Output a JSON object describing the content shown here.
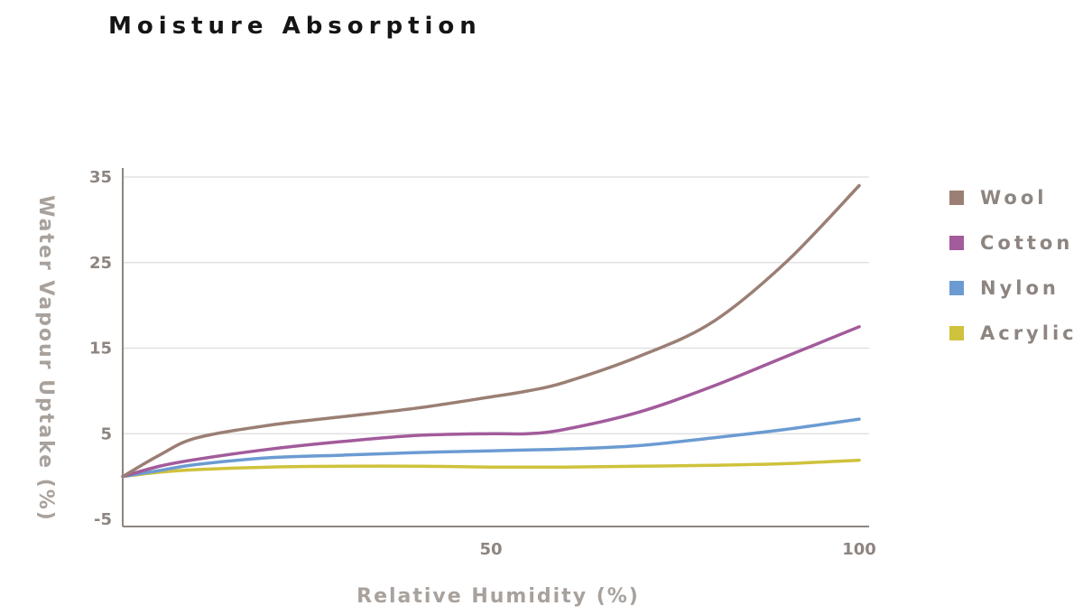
{
  "chart_data": {
    "type": "line",
    "title": "Moisture Absorption",
    "xlabel": "Relative Humidity (%)",
    "ylabel": "Water Vapour Uptake (%)",
    "xlim": [
      0,
      100
    ],
    "ylim": [
      -5,
      35
    ],
    "x_ticks": [
      50,
      100
    ],
    "y_ticks": [
      35,
      25,
      15,
      5,
      -5
    ],
    "grid": true,
    "legend_position": "right",
    "x": [
      0,
      5,
      10,
      20,
      30,
      40,
      50,
      55,
      60,
      70,
      80,
      90,
      100
    ],
    "series": [
      {
        "name": "Wool",
        "color": "#9b7f74",
        "values": [
          0.0,
          2.5,
          4.5,
          6.0,
          7.0,
          8.0,
          9.3,
          10.0,
          11.0,
          14.0,
          18.0,
          25.0,
          34.0
        ]
      },
      {
        "name": "Cotton",
        "color": "#a25b9b",
        "values": [
          0.0,
          1.2,
          2.0,
          3.2,
          4.1,
          4.8,
          5.0,
          5.0,
          5.5,
          7.5,
          10.5,
          14.0,
          17.5
        ]
      },
      {
        "name": "Nylon",
        "color": "#6b9bd2",
        "values": [
          0.0,
          0.7,
          1.4,
          2.2,
          2.5,
          2.8,
          3.0,
          3.1,
          3.2,
          3.6,
          4.5,
          5.5,
          6.7
        ]
      },
      {
        "name": "Acrylic",
        "color": "#cfc23c",
        "values": [
          0.0,
          0.5,
          0.8,
          1.1,
          1.2,
          1.2,
          1.1,
          1.1,
          1.1,
          1.2,
          1.3,
          1.5,
          1.9
        ]
      }
    ]
  }
}
